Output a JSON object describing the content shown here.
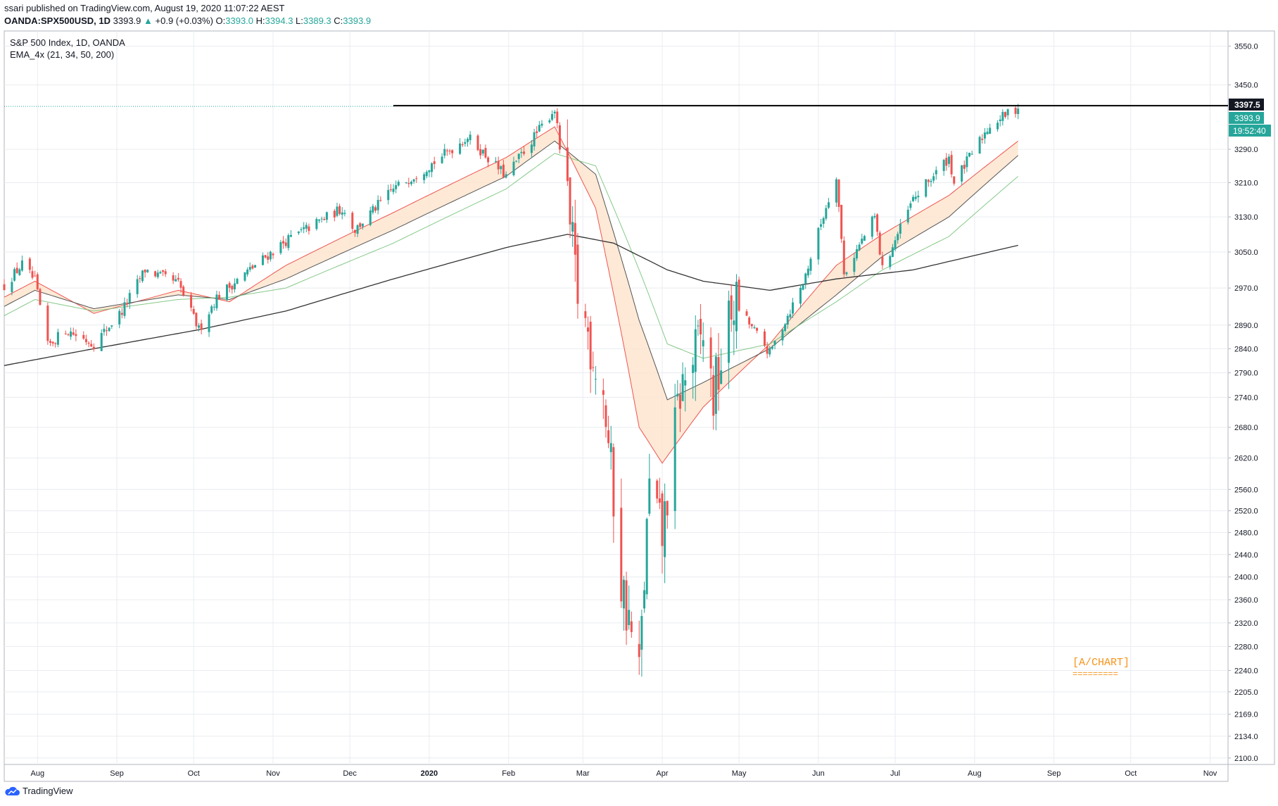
{
  "header": {
    "published_line": "ssari published on TradingView.com, August 19, 2020 11:07:22 AEST",
    "symbol": "OANDA:SPX500USD, 1D",
    "last": "3393.9",
    "change_arrow": "▲",
    "change": "+0.9 (+0.03%)",
    "o_label": "O:",
    "o_value": "3393.0",
    "h_label": "H:",
    "h_value": "3394.3",
    "l_label": "L:",
    "l_value": "3389.3",
    "c_label": "C:",
    "c_value": "3393.9"
  },
  "legend": {
    "title": "S&P 500 Index, 1D, OANDA",
    "indicator": "EMA_4x (21, 34, 50, 200)"
  },
  "price_tags": {
    "hline": "3397.5",
    "last": "3393.9",
    "countdown": "19:52:40"
  },
  "watermark": {
    "text": "[A/CHART]",
    "underline": "========="
  },
  "footer": {
    "brand": "TradingView"
  },
  "colors": {
    "up": "#26a69a",
    "down": "#ef5350",
    "ema21": "#ef5350",
    "ema34": "#555555",
    "ema50": "#66bb6a",
    "ema200": "#333333",
    "band_fill": "#fde4cc",
    "accent_orange": "#f7931a",
    "hline": "#000000"
  },
  "chart_data": {
    "type": "candlestick",
    "title": "S&P 500 Index, 1D, OANDA",
    "x_labels": [
      "Aug",
      "Sep",
      "Oct",
      "Nov",
      "Dec",
      "2020",
      "Feb",
      "Mar",
      "Apr",
      "May",
      "Jun",
      "Jul",
      "Aug",
      "Sep",
      "Oct",
      "Nov"
    ],
    "x_range": [
      "2019-07-19",
      "2020-11-08"
    ],
    "y_ticks": [
      3550.0,
      3450.0,
      3290.0,
      3210.0,
      3130.0,
      3050.0,
      2970.0,
      2890.0,
      2840.0,
      2790.0,
      2740.0,
      2680.0,
      2620.0,
      2560.0,
      2520.0,
      2480.0,
      2440.0,
      2400.0,
      2360.0,
      2320.0,
      2280.0,
      2240.0,
      2205.0,
      2169.0,
      2134.0,
      2100.0
    ],
    "y_scale": "log",
    "ylim": [
      2090,
      3590
    ],
    "horizontal_line": {
      "value": 3397.5,
      "from": "2019-12-18"
    },
    "last_price": 3393.9,
    "grid": true,
    "anchors": [
      [
        "2019-07-19",
        2975
      ],
      [
        "2019-07-26",
        3022
      ],
      [
        "2019-07-31",
        2985
      ],
      [
        "2019-08-05",
        2845
      ],
      [
        "2019-08-12",
        2880
      ],
      [
        "2019-08-23",
        2850
      ],
      [
        "2019-09-03",
        2920
      ],
      [
        "2019-09-12",
        3010
      ],
      [
        "2019-09-25",
        2980
      ],
      [
        "2019-10-03",
        2880
      ],
      [
        "2019-10-10",
        2950
      ],
      [
        "2019-10-25",
        3020
      ],
      [
        "2019-11-06",
        3075
      ],
      [
        "2019-11-28",
        3150
      ],
      [
        "2019-12-03",
        3100
      ],
      [
        "2019-12-18",
        3195
      ],
      [
        "2020-01-02",
        3255
      ],
      [
        "2020-01-16",
        3320
      ],
      [
        "2020-01-31",
        3225
      ],
      [
        "2020-02-19",
        3390
      ],
      [
        "2020-02-28",
        2955
      ],
      [
        "2020-03-09",
        2750
      ],
      [
        "2020-03-16",
        2390
      ],
      [
        "2020-03-23",
        2230
      ],
      [
        "2020-03-27",
        2560
      ],
      [
        "2020-04-01",
        2470
      ],
      [
        "2020-04-08",
        2750
      ],
      [
        "2020-04-17",
        2870
      ],
      [
        "2020-04-21",
        2740
      ],
      [
        "2020-04-29",
        2940
      ],
      [
        "2020-05-13",
        2830
      ],
      [
        "2020-05-26",
        2980
      ],
      [
        "2020-06-08",
        3230
      ],
      [
        "2020-06-11",
        3000
      ],
      [
        "2020-06-23",
        3130
      ],
      [
        "2020-06-26",
        3010
      ],
      [
        "2020-07-08",
        3170
      ],
      [
        "2020-07-22",
        3270
      ],
      [
        "2020-07-24",
        3210
      ],
      [
        "2020-08-07",
        3350
      ],
      [
        "2020-08-18",
        3393.9
      ]
    ],
    "series": [
      {
        "name": "EMA 21",
        "anchors": [
          [
            "2019-07-19",
            2950
          ],
          [
            "2019-07-31",
            2985
          ],
          [
            "2019-08-23",
            2915
          ],
          [
            "2019-09-25",
            2965
          ],
          [
            "2019-10-15",
            2940
          ],
          [
            "2019-11-06",
            3020
          ],
          [
            "2019-12-18",
            3140
          ],
          [
            "2020-01-31",
            3270
          ],
          [
            "2020-02-19",
            3345
          ],
          [
            "2020-03-06",
            3150
          ],
          [
            "2020-03-23",
            2680
          ],
          [
            "2020-04-01",
            2610
          ],
          [
            "2020-04-17",
            2720
          ],
          [
            "2020-05-13",
            2850
          ],
          [
            "2020-06-08",
            3020
          ],
          [
            "2020-06-26",
            3090
          ],
          [
            "2020-07-22",
            3180
          ],
          [
            "2020-08-18",
            3310
          ]
        ]
      },
      {
        "name": "EMA 34",
        "anchors": [
          [
            "2019-07-19",
            2930
          ],
          [
            "2019-07-31",
            2965
          ],
          [
            "2019-08-23",
            2925
          ],
          [
            "2019-09-25",
            2955
          ],
          [
            "2019-10-15",
            2945
          ],
          [
            "2019-11-06",
            2990
          ],
          [
            "2019-12-18",
            3100
          ],
          [
            "2020-01-31",
            3225
          ],
          [
            "2020-02-19",
            3310
          ],
          [
            "2020-03-06",
            3230
          ],
          [
            "2020-03-23",
            2900
          ],
          [
            "2020-04-03",
            2735
          ],
          [
            "2020-04-17",
            2770
          ],
          [
            "2020-05-13",
            2840
          ],
          [
            "2020-06-08",
            2955
          ],
          [
            "2020-06-26",
            3040
          ],
          [
            "2020-07-22",
            3130
          ],
          [
            "2020-08-18",
            3275
          ]
        ]
      },
      {
        "name": "EMA 50",
        "anchors": [
          [
            "2019-07-19",
            2910
          ],
          [
            "2019-07-31",
            2945
          ],
          [
            "2019-08-23",
            2920
          ],
          [
            "2019-09-25",
            2945
          ],
          [
            "2019-10-15",
            2950
          ],
          [
            "2019-11-06",
            2970
          ],
          [
            "2019-12-18",
            3070
          ],
          [
            "2020-01-31",
            3195
          ],
          [
            "2020-02-19",
            3280
          ],
          [
            "2020-03-06",
            3250
          ],
          [
            "2020-03-23",
            3010
          ],
          [
            "2020-04-03",
            2850
          ],
          [
            "2020-04-17",
            2820
          ],
          [
            "2020-05-13",
            2850
          ],
          [
            "2020-06-08",
            2940
          ],
          [
            "2020-06-26",
            3010
          ],
          [
            "2020-07-22",
            3085
          ],
          [
            "2020-08-18",
            3225
          ]
        ]
      },
      {
        "name": "EMA 200",
        "anchors": [
          [
            "2019-07-19",
            2805
          ],
          [
            "2019-08-23",
            2840
          ],
          [
            "2019-10-03",
            2880
          ],
          [
            "2019-11-06",
            2920
          ],
          [
            "2019-12-18",
            2990
          ],
          [
            "2020-01-31",
            3060
          ],
          [
            "2020-02-24",
            3090
          ],
          [
            "2020-03-13",
            3070
          ],
          [
            "2020-04-03",
            3010
          ],
          [
            "2020-04-17",
            2985
          ],
          [
            "2020-05-13",
            2965
          ],
          [
            "2020-06-08",
            2990
          ],
          [
            "2020-07-08",
            3010
          ],
          [
            "2020-08-18",
            3065
          ]
        ]
      }
    ]
  }
}
